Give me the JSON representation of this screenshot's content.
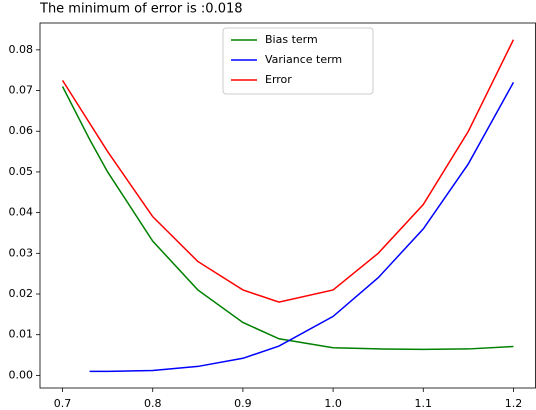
{
  "chart_data": {
    "type": "line",
    "title": "The minimum of error is :0.018",
    "x": [
      0.7,
      0.73,
      0.75,
      0.8,
      0.85,
      0.9,
      0.94,
      1.0,
      1.05,
      1.1,
      1.15,
      1.2
    ],
    "series": [
      {
        "name": "Bias term",
        "color": "#008000",
        "values": [
          0.071,
          0.058,
          0.05,
          0.033,
          0.021,
          0.013,
          0.009,
          0.0068,
          0.0065,
          0.0064,
          0.0065,
          0.0071
        ]
      },
      {
        "name": "Variance term",
        "color": "#0000ff",
        "values": [
          null,
          0.001,
          0.001,
          0.0012,
          0.0022,
          0.0042,
          0.0072,
          0.0145,
          0.024,
          0.036,
          0.052,
          0.072
        ]
      },
      {
        "name": "Error",
        "color": "#ff0000",
        "values": [
          0.0725,
          0.062,
          0.055,
          0.039,
          0.028,
          0.021,
          0.018,
          0.021,
          0.03,
          0.042,
          0.06,
          0.0825
        ]
      }
    ],
    "xlim": [
      0.675,
      1.225
    ],
    "ylim": [
      -0.0031,
      0.0866
    ],
    "xticks": [
      0.7,
      0.8,
      0.9,
      {
        "value": 1.0,
        "label": "1.0"
      },
      1.1,
      1.2
    ],
    "yticks": [
      {
        "value": 0,
        "label": "0.00"
      },
      {
        "value": 0.01,
        "label": "0.01"
      },
      {
        "value": 0.02,
        "label": "0.02"
      },
      {
        "value": 0.03,
        "label": "0.03"
      },
      {
        "value": 0.04,
        "label": "0.04"
      },
      {
        "value": 0.05,
        "label": "0.05"
      },
      {
        "value": 0.06,
        "label": "0.06"
      },
      {
        "value": 0.07,
        "label": "0.07"
      },
      {
        "value": 0.08,
        "label": "0.08"
      }
    ],
    "legend": "upper center"
  }
}
